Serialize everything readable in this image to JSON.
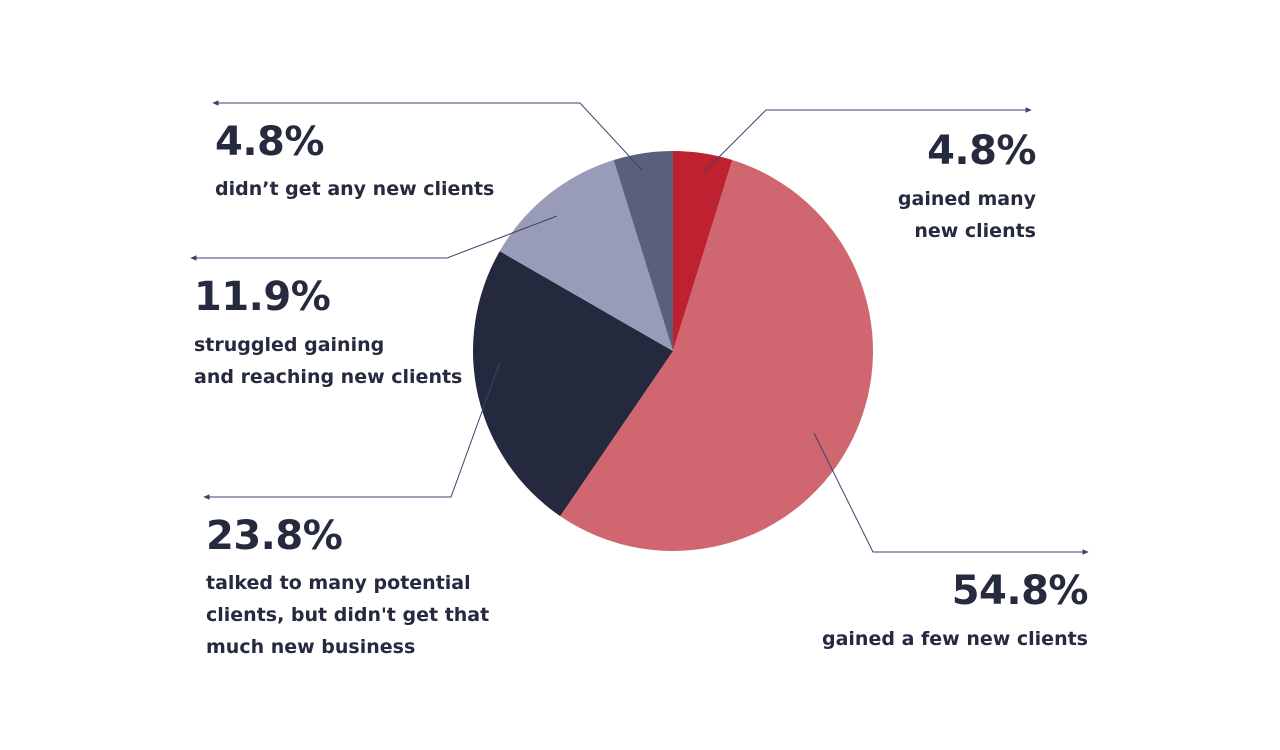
{
  "chart_data": {
    "type": "pie",
    "title": "",
    "slices": [
      {
        "value": 4.8,
        "label": "4.8%",
        "description": "gained many\nnew clients",
        "color": "#be2231"
      },
      {
        "value": 54.8,
        "label": "54.8%",
        "description": "gained a few new clients",
        "color": "#cf6670"
      },
      {
        "value": 23.8,
        "label": "23.8%",
        "description": "talked to many potential\nclients, but didn't get that\nmuch new business",
        "color": "#24293e"
      },
      {
        "value": 11.9,
        "label": "11.9%",
        "description": "struggled gaining\nand reaching new clients",
        "color": "#989cb9"
      },
      {
        "value": 4.8,
        "label": "4.8%",
        "description": "didn’t get any new clients",
        "color": "#5b5f7c"
      }
    ],
    "leader_line_color": "#3e4268"
  }
}
